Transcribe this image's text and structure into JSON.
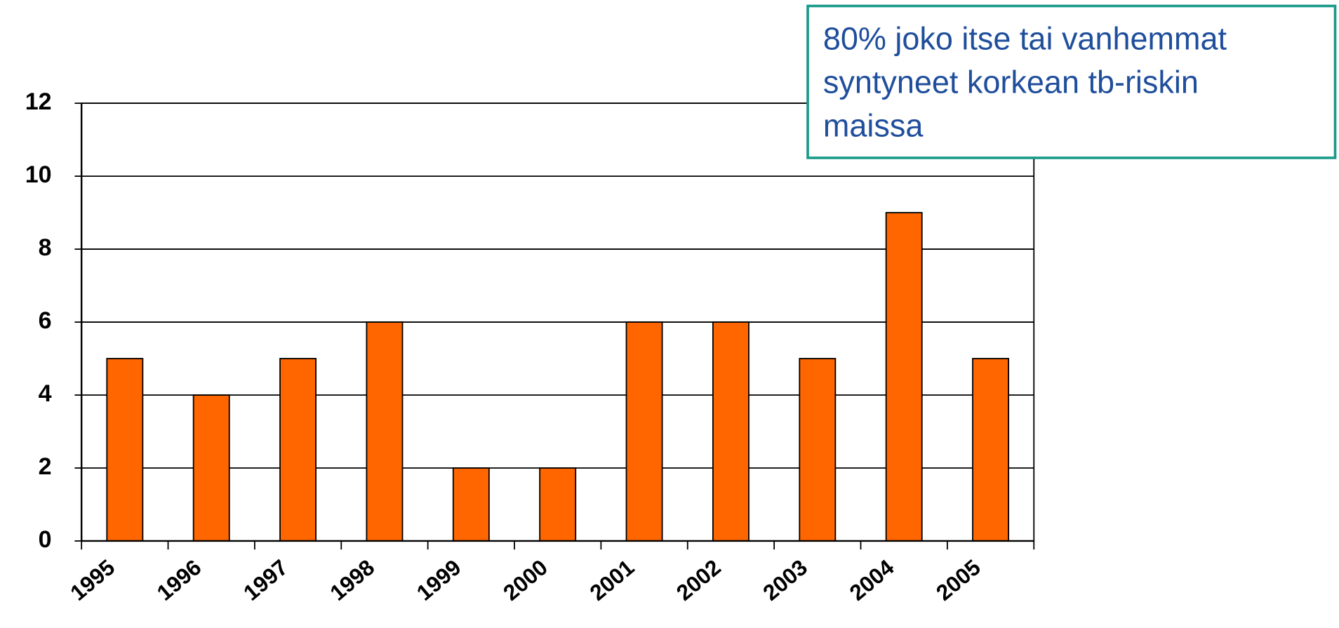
{
  "chart_data": {
    "type": "bar",
    "categories": [
      "1995",
      "1996",
      "1997",
      "1998",
      "1999",
      "2000",
      "2001",
      "2002",
      "2003",
      "2004",
      "2005"
    ],
    "values": [
      5,
      4,
      5,
      6,
      2,
      2,
      6,
      6,
      5,
      9,
      5
    ],
    "color": "#ff6600",
    "ylim": [
      0,
      12
    ],
    "yticks": [
      0,
      2,
      4,
      6,
      8,
      10,
      12
    ],
    "grid": true,
    "annotation": [
      "80% joko itse tai vanhemmat",
      "syntyneet korkean tb-riskin",
      "maissa"
    ]
  }
}
